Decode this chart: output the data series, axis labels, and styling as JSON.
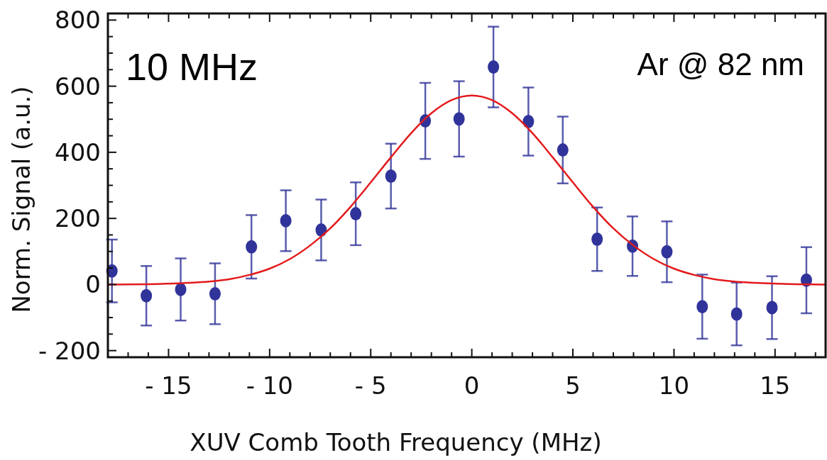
{
  "chart_data": {
    "type": "scatter",
    "xlabel": "XUV Comb Tooth Frequency (MHz)",
    "ylabel": "Norm. Signal (a.u.)",
    "annotations": [
      "10 MHz",
      "Ar @ 82 nm"
    ],
    "xlim": [
      -18,
      17.5
    ],
    "ylim": [
      -220,
      820
    ],
    "xticks": [
      {
        "value": -18,
        "label": null
      },
      {
        "value": -17,
        "label": null
      },
      {
        "value": -16,
        "label": null
      },
      {
        "value": -15,
        "label": "- 15"
      },
      {
        "value": -14,
        "label": null
      },
      {
        "value": -13,
        "label": null
      },
      {
        "value": -12,
        "label": null
      },
      {
        "value": -11,
        "label": null
      },
      {
        "value": -10,
        "label": "- 10"
      },
      {
        "value": -9,
        "label": null
      },
      {
        "value": -8,
        "label": null
      },
      {
        "value": -7,
        "label": null
      },
      {
        "value": -6,
        "label": null
      },
      {
        "value": -5,
        "label": "- 5"
      },
      {
        "value": -4,
        "label": null
      },
      {
        "value": -3,
        "label": null
      },
      {
        "value": -2,
        "label": null
      },
      {
        "value": -1,
        "label": null
      },
      0,
      {
        "value": 1,
        "label": null
      },
      {
        "value": 2,
        "label": null
      },
      {
        "value": 3,
        "label": null
      },
      {
        "value": 4,
        "label": null
      },
      5,
      {
        "value": 6,
        "label": null
      },
      {
        "value": 7,
        "label": null
      },
      {
        "value": 8,
        "label": null
      },
      {
        "value": 9,
        "label": null
      },
      10,
      {
        "value": 11,
        "label": null
      },
      {
        "value": 12,
        "label": null
      },
      {
        "value": 13,
        "label": null
      },
      {
        "value": 14,
        "label": null
      },
      15,
      {
        "value": 16,
        "label": null
      },
      {
        "value": 17,
        "label": null
      }
    ],
    "yticks": [
      {
        "value": -200,
        "label": "- 200"
      },
      {
        "value": -150,
        "label": null
      },
      {
        "value": -100,
        "label": null
      },
      {
        "value": -50,
        "label": null
      },
      0,
      {
        "value": 50,
        "label": null
      },
      {
        "value": 100,
        "label": null
      },
      {
        "value": 150,
        "label": null
      },
      200,
      {
        "value": 250,
        "label": null
      },
      {
        "value": 300,
        "label": null
      },
      {
        "value": 350,
        "label": null
      },
      400,
      {
        "value": 450,
        "label": null
      },
      {
        "value": 500,
        "label": null
      },
      {
        "value": 550,
        "label": null
      },
      600,
      {
        "value": 650,
        "label": null
      },
      {
        "value": 700,
        "label": null
      },
      {
        "value": 750,
        "label": null
      },
      800
    ],
    "grid": false,
    "series": [
      {
        "marker": "circle",
        "color": "#303399",
        "x": [
          -17.8,
          -16.1,
          -14.4,
          -12.7,
          -10.9,
          -9.2,
          -7.45,
          -5.74,
          -4.0,
          -2.3,
          -0.63,
          1.07,
          2.8,
          4.5,
          6.2,
          7.95,
          9.65,
          11.4,
          13.1,
          14.85,
          16.55
        ],
        "values": [
          41,
          -34,
          -15,
          -28,
          114,
          193,
          165,
          214,
          328,
          495,
          501,
          658,
          493,
          407,
          137,
          116,
          99,
          -67,
          -89,
          -70,
          13
        ],
        "errors": [
          95,
          90,
          94,
          92,
          96,
          92,
          92,
          95,
          98,
          115,
          114,
          122,
          103,
          101,
          96,
          90,
          92,
          97,
          95,
          95,
          100
        ]
      },
      {
        "type": "line",
        "line_style": "solid",
        "color": "#e31a1c",
        "x": [
          -18,
          -16,
          -14,
          -13,
          -12,
          -11,
          -10,
          -9,
          -8,
          -7,
          -6,
          -5,
          -4,
          -3,
          -2,
          -1,
          0,
          1,
          2,
          3,
          4,
          5,
          6,
          7,
          8,
          9,
          10,
          11,
          12,
          13,
          14,
          16,
          17.5
        ],
        "values": [
          0,
          1,
          5,
          9,
          16,
          29,
          48,
          77,
          118,
          170,
          235,
          309,
          385,
          458,
          518,
          558,
          572,
          558,
          518,
          458,
          385,
          309,
          235,
          170,
          118,
          77,
          48,
          29,
          16,
          9,
          5,
          1,
          0
        ]
      }
    ]
  }
}
